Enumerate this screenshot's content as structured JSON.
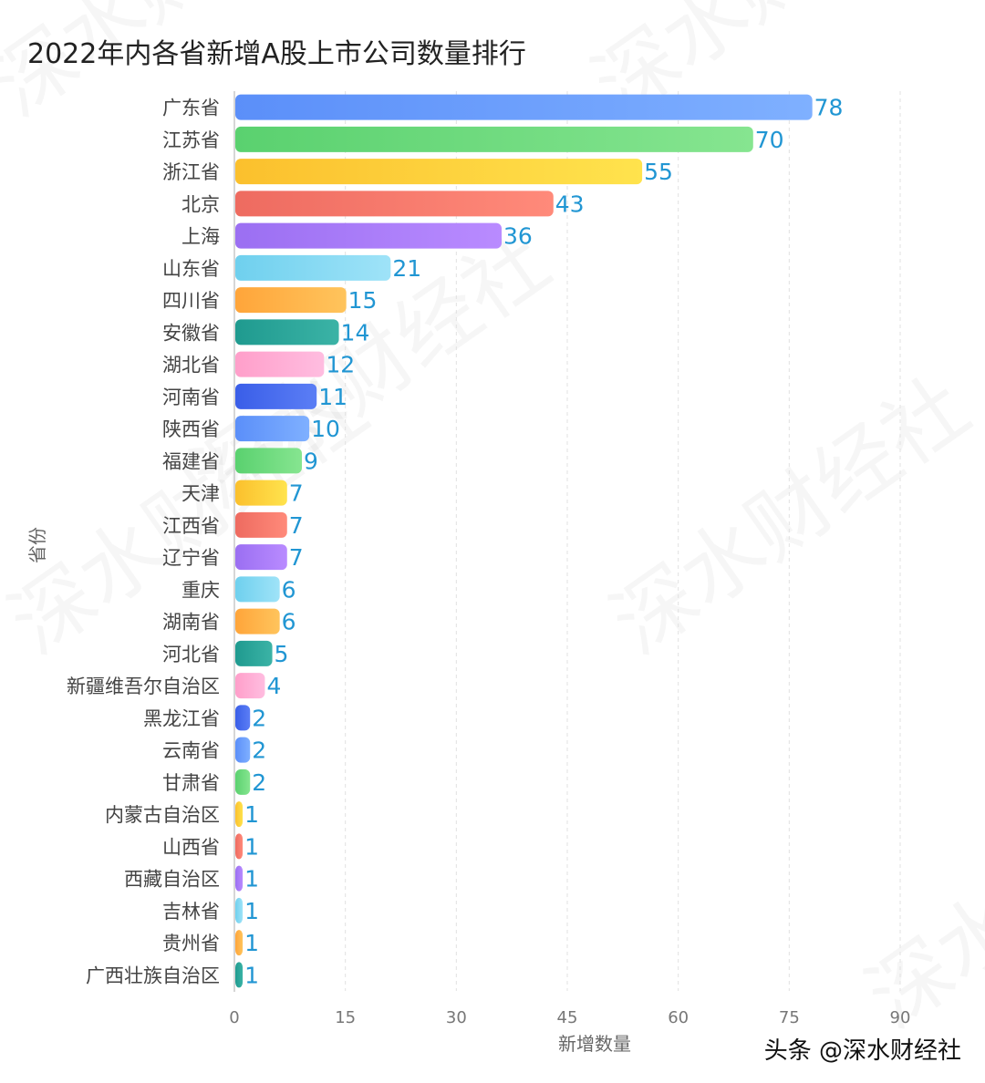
{
  "chart_data": {
    "type": "bar",
    "orientation": "horizontal",
    "title": "2022年内各省新增A股上市公司数量排行",
    "xlabel": "新增数量",
    "ylabel": "省份",
    "xlim": [
      0,
      90
    ],
    "xticks": [
      0,
      15,
      30,
      45,
      60,
      75,
      90
    ],
    "grid": "vertical dashed",
    "categories": [
      "广东省",
      "江苏省",
      "浙江省",
      "北京",
      "上海",
      "山东省",
      "四川省",
      "安徽省",
      "湖北省",
      "河南省",
      "陕西省",
      "福建省",
      "天津",
      "江西省",
      "辽宁省",
      "重庆",
      "湖南省",
      "河北省",
      "新疆维吾尔自治区",
      "黑龙江省",
      "云南省",
      "甘肃省",
      "内蒙古自治区",
      "山西省",
      "西藏自治区",
      "吉林省",
      "贵州省",
      "广西壮族自治区"
    ],
    "values": [
      78,
      70,
      55,
      43,
      36,
      21,
      15,
      14,
      12,
      11,
      10,
      9,
      7,
      7,
      7,
      6,
      6,
      5,
      4,
      2,
      2,
      2,
      1,
      1,
      1,
      1,
      1,
      1
    ],
    "palette": [
      [
        "#5b8ff9",
        "#7fb0ff"
      ],
      [
        "#5ad16f",
        "#86e590"
      ],
      [
        "#fbc02d",
        "#ffe34d"
      ],
      [
        "#ee6b60",
        "#ff8a7a"
      ],
      [
        "#9b6ff2",
        "#b98bff"
      ],
      [
        "#6fd0ee",
        "#9fe3f8"
      ],
      [
        "#ffa53a",
        "#ffc45c"
      ],
      [
        "#1f9a8f",
        "#3bb3a6"
      ],
      [
        "#ff9fca",
        "#ffbde0"
      ],
      [
        "#3a5ee8",
        "#5b7ef5"
      ]
    ],
    "label_color": "#2196d3"
  },
  "footer": {
    "watermark": "头条 @深水财经社",
    "bg_watermark": "深水财经社"
  }
}
